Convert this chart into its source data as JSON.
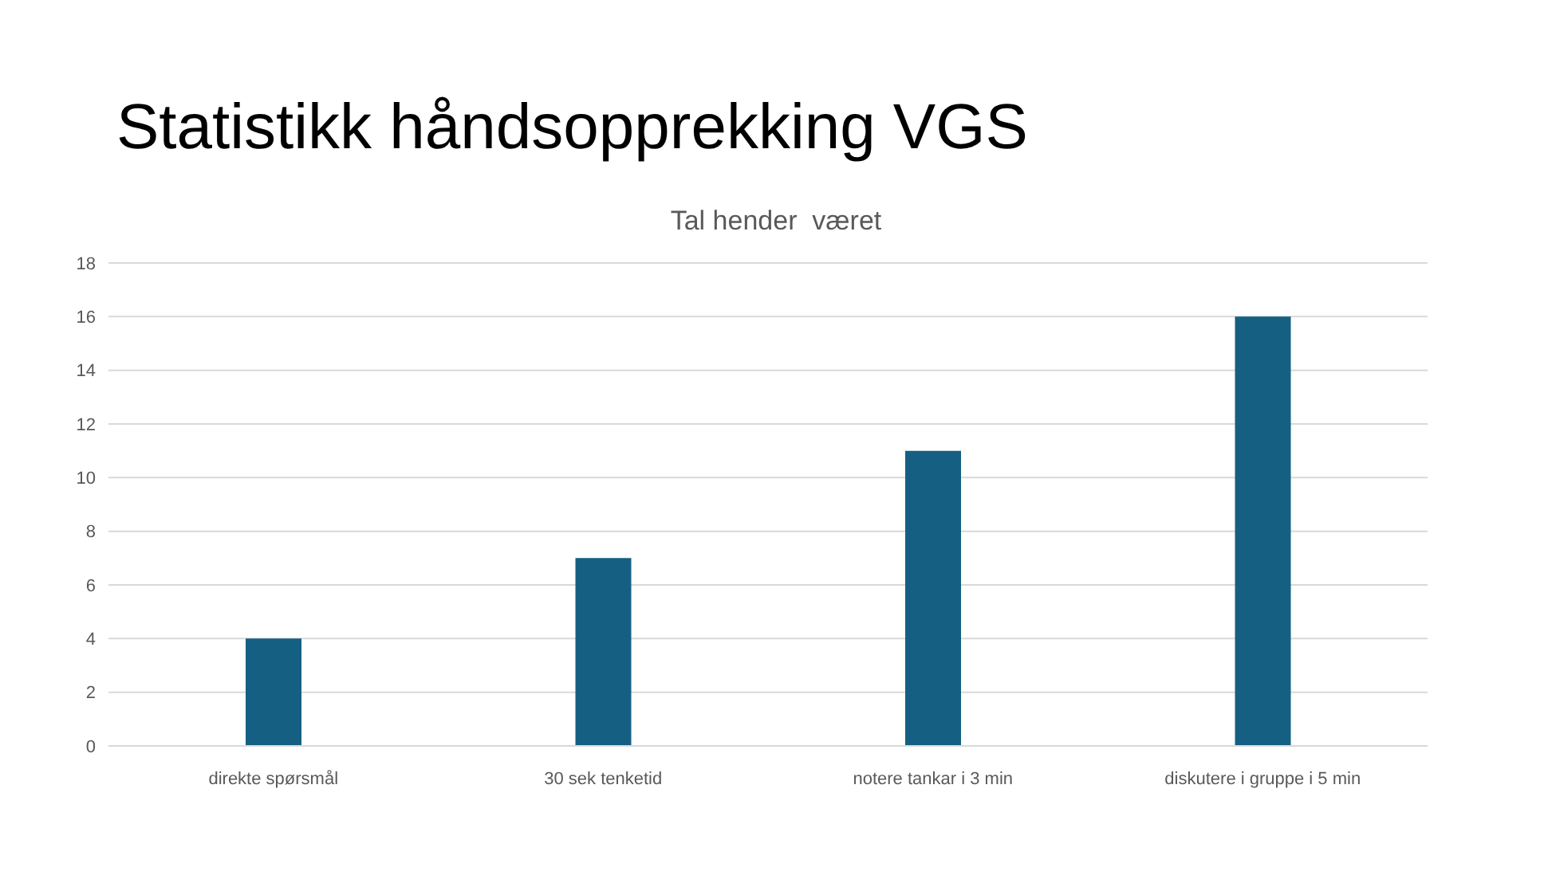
{
  "chart_data": {
    "type": "bar",
    "title": "Statistikk håndsopprekking VGS",
    "subtitle": "Tal hender  været",
    "categories": [
      "direkte spørsmål",
      "30 sek tenketid",
      "notere tankar i 3 min",
      "diskutere i gruppe i 5 min"
    ],
    "series": [
      {
        "color": "#156082",
        "values": [
          4,
          7,
          11,
          16
        ]
      }
    ],
    "ylim": [
      0,
      18
    ],
    "yticks": [
      0,
      2,
      4,
      6,
      8,
      10,
      12,
      14,
      16,
      18
    ],
    "grid": "y",
    "legend": false
  }
}
